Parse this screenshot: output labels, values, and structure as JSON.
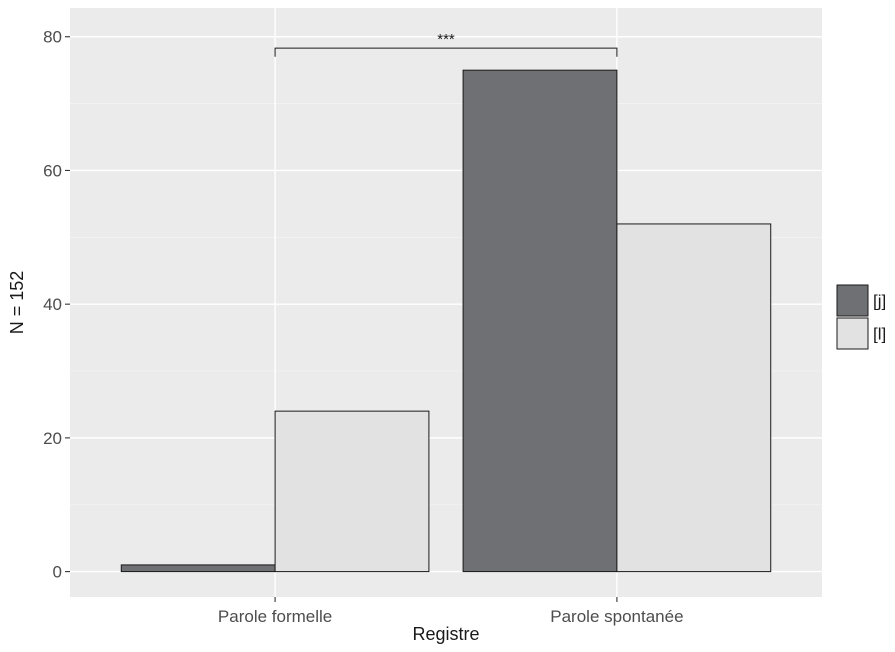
{
  "chart_data": {
    "type": "bar",
    "categories": [
      "Parole formelle",
      "Parole spontanée"
    ],
    "series": [
      {
        "name": "[j]",
        "values": [
          1,
          75
        ],
        "color": "#6f7073"
      },
      {
        "name": "[l]",
        "values": [
          24,
          52
        ],
        "color": "#e2e2e2"
      }
    ],
    "xlabel": "Registre",
    "ylabel": "N = 152",
    "ylim": [
      -3.8,
      84.3
    ],
    "yticks": [
      0,
      20,
      40,
      60,
      80
    ],
    "grid": true,
    "legend_position": "right",
    "annotation": {
      "text": "***",
      "from_category": "Parole formelle",
      "to_category": "Parole spontanée",
      "y": 78.3,
      "tick_down_to": 77.0
    },
    "colors": {
      "panel_background": "#ebebeb",
      "grid_major": "#ffffff",
      "grid_minor": "#f4f4f4",
      "bar_outline": "#1a1a1a",
      "text": "#1a1a1a",
      "tick_text": "#4d4d4d"
    }
  }
}
